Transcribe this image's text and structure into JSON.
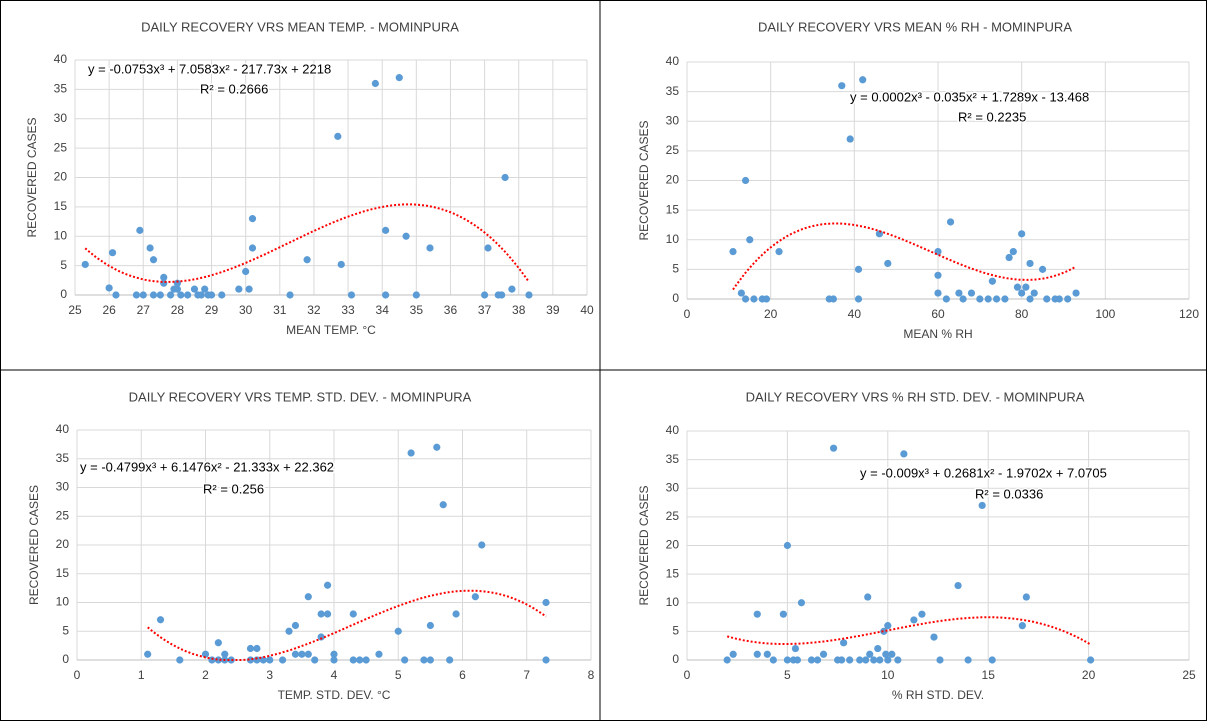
{
  "chart_data": [
    {
      "type": "scatter",
      "title": "DAILY RECOVERY VRS MEAN TEMP. - MOMINPURA",
      "x_label": "MEAN TEMP. °C",
      "y_label": "RECOVERED  CASES",
      "color": "#5b9bd5",
      "grid": true,
      "x": [
        25.3,
        26,
        26.1,
        26.2,
        26.8,
        26.9,
        27,
        27.2,
        27.3,
        27.3,
        27.5,
        27.6,
        27.6,
        27.8,
        27.9,
        28,
        28,
        28.1,
        28.3,
        28.5,
        28.6,
        28.7,
        28.8,
        28.9,
        29,
        29.3,
        29.8,
        30,
        30.1,
        30.2,
        30.2,
        31.3,
        31.8,
        32.7,
        32.8,
        33.1,
        33.8,
        34.1,
        34.1,
        34.5,
        34.7,
        35,
        35.4,
        37,
        37.1,
        37.4,
        37.5,
        37.6,
        37.8,
        38.3
      ],
      "values": [
        5.2,
        1.2,
        7.2,
        0,
        0,
        11,
        0,
        8,
        6,
        0,
        0,
        3,
        2,
        0,
        1,
        2,
        1,
        0,
        0,
        1,
        0,
        0,
        1,
        0,
        0,
        0,
        1,
        4,
        1,
        8,
        13,
        0,
        6,
        27,
        5.2,
        0,
        36,
        11,
        0,
        37,
        10,
        0,
        8,
        0,
        8,
        0,
        0,
        20,
        1,
        0
      ],
      "xlim": [
        25,
        40
      ],
      "xticks": [
        25,
        26,
        27,
        28,
        29,
        30,
        31,
        32,
        33,
        34,
        35,
        36,
        37,
        38,
        39,
        40
      ],
      "ylim": [
        0,
        40
      ],
      "yticks": [
        0,
        5,
        10,
        15,
        20,
        25,
        30,
        35,
        40
      ],
      "trendline": {
        "equation": "y = -0.0753x³ + 7.0583x² - 217.73x + 2218",
        "r_squared": "R² = 0.2666",
        "coefficients": [
          -0.0753,
          7.0583,
          -217.73,
          2218
        ],
        "color": "#ff0000"
      }
    },
    {
      "type": "scatter",
      "title": "DAILY RECOVERY VRS MEAN % RH - MOMINPURA",
      "x_label": "MEAN % RH",
      "y_label": "RECOVERED  CASES",
      "color": "#5b9bd5",
      "grid": true,
      "x": [
        11,
        13,
        14,
        14,
        15,
        16,
        18,
        19,
        22,
        34,
        35,
        37,
        39,
        41,
        41,
        42,
        46,
        48,
        60,
        60,
        60,
        62,
        63,
        65,
        66,
        68,
        70,
        72,
        73,
        74,
        76,
        77,
        78,
        79,
        80,
        80,
        81,
        82,
        82,
        83,
        85,
        86,
        88,
        89,
        91,
        93
      ],
      "values": [
        8,
        1,
        20,
        0,
        10,
        0,
        0,
        0,
        8,
        0,
        0,
        36,
        27,
        5,
        0,
        37,
        11,
        6,
        8,
        4,
        1,
        0,
        13,
        1,
        0,
        1,
        0,
        0,
        3,
        0,
        0,
        7,
        8,
        2,
        11,
        1,
        2,
        6,
        0,
        1,
        5,
        0,
        0,
        0,
        0,
        1
      ],
      "xlim": [
        0,
        120
      ],
      "xticks": [
        0,
        20,
        40,
        60,
        80,
        100,
        120
      ],
      "ylim": [
        0,
        40
      ],
      "yticks": [
        0,
        5,
        10,
        15,
        20,
        25,
        30,
        35,
        40
      ],
      "trendline": {
        "equation": "y = 0.0002x³ - 0.035x² + 1.7289x - 13.468",
        "r_squared": "R² = 0.2235",
        "coefficients": [
          0.0002,
          -0.035,
          1.7289,
          -13.468
        ],
        "color": "#ff0000"
      }
    },
    {
      "type": "scatter",
      "title": "DAILY RECOVERY VRS TEMP. STD. DEV. - MOMINPURA",
      "x_label": "TEMP. STD. DEV. °C",
      "y_label": "RECOVERED  CASES",
      "color": "#5b9bd5",
      "grid": true,
      "x": [
        1.1,
        1.3,
        1.6,
        2,
        2.1,
        2.2,
        2.2,
        2.3,
        2.3,
        2.4,
        2.7,
        2.7,
        2.8,
        2.8,
        2.9,
        3,
        3.2,
        3.3,
        3.4,
        3.4,
        3.5,
        3.6,
        3.6,
        3.7,
        3.8,
        3.8,
        3.9,
        3.9,
        4,
        4,
        4.3,
        4.3,
        4.4,
        4.5,
        4.7,
        5,
        5.1,
        5.2,
        5.4,
        5.5,
        5.5,
        5.6,
        5.7,
        5.8,
        5.9,
        6.2,
        6.3,
        7.3,
        7.3
      ],
      "values": [
        1,
        7,
        0,
        1,
        0,
        0,
        3,
        1,
        0,
        0,
        2,
        0,
        2,
        0,
        0,
        0,
        0,
        5,
        6,
        1,
        1,
        11,
        1,
        0,
        8,
        4,
        13,
        8,
        0,
        1,
        0,
        8,
        0,
        0,
        1,
        5,
        0,
        36,
        0,
        6,
        0,
        37,
        27,
        0,
        8,
        11,
        20,
        10,
        0
      ],
      "xlim": [
        0,
        8
      ],
      "xticks": [
        0,
        1,
        2,
        3,
        4,
        5,
        6,
        7,
        8
      ],
      "ylim": [
        0,
        40
      ],
      "yticks": [
        0,
        5,
        10,
        15,
        20,
        25,
        30,
        35,
        40
      ],
      "trendline": {
        "equation": "y = -0.4799x³ + 6.1476x² - 21.333x + 22.362",
        "r_squared": "R² = 0.256",
        "coefficients": [
          -0.4799,
          6.1476,
          -21.333,
          22.362
        ],
        "color": "#ff0000"
      }
    },
    {
      "type": "scatter",
      "title": "DAILY RECOVERY VRS % RH STD. DEV. - MOMINPURA",
      "x_label": "% RH  STD. DEV.",
      "y_label": "RECOVERED  CASES",
      "color": "#5b9bd5",
      "grid": true,
      "x": [
        2,
        2.3,
        3.5,
        3.5,
        4,
        4.3,
        4.8,
        5,
        5,
        5.3,
        5.4,
        5.5,
        5.7,
        6.2,
        6.5,
        6.8,
        7.3,
        7.5,
        7.7,
        7.8,
        8.1,
        8.6,
        8.9,
        9,
        9.1,
        9.3,
        9.5,
        9.6,
        9.8,
        9.9,
        10,
        10,
        10.2,
        10.5,
        10.8,
        11.3,
        11.7,
        12.3,
        12.6,
        13.5,
        14,
        14.7,
        15.2,
        16.7,
        16.9,
        20.1
      ],
      "values": [
        0,
        1,
        8,
        1,
        1,
        0,
        8,
        20,
        0,
        0,
        2,
        0,
        10,
        0,
        0,
        1,
        37,
        0,
        0,
        3,
        0,
        0,
        0,
        11,
        1,
        0,
        2,
        0,
        5,
        1,
        0,
        6,
        1,
        0,
        36,
        7,
        8,
        4,
        0,
        13,
        0,
        27,
        0,
        6,
        11,
        0
      ],
      "xlim": [
        0,
        25
      ],
      "xticks": [
        0,
        5,
        10,
        15,
        20,
        25
      ],
      "ylim": [
        0,
        40
      ],
      "yticks": [
        0,
        5,
        10,
        15,
        20,
        25,
        30,
        35,
        40
      ],
      "trendline": {
        "equation": "y = -0.009x³ + 0.2681x² - 1.9702x + 7.0705",
        "r_squared": "R² = 0.0336",
        "coefficients": [
          -0.009,
          0.2681,
          -1.9702,
          7.0705
        ],
        "color": "#ff0000"
      }
    }
  ]
}
